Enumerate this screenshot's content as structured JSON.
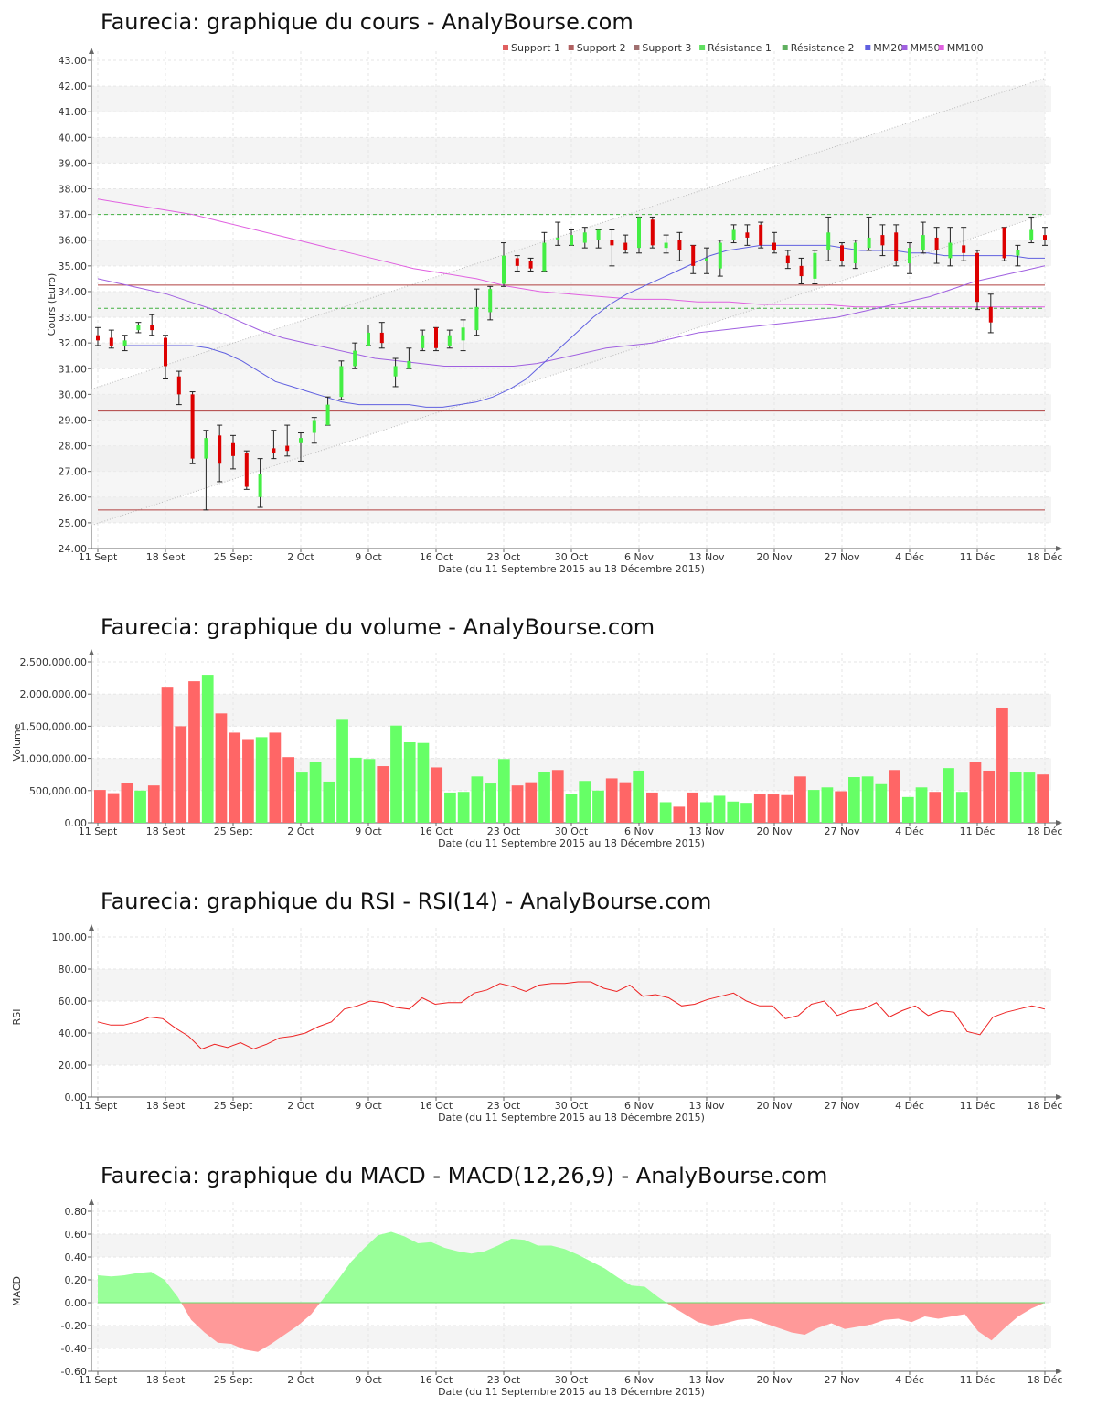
{
  "chart_data": [
    {
      "type": "candlestick",
      "title": "Faurecia: graphique du cours - AnalyBourse.com",
      "ylabel": "Cours (Euro)",
      "xlabel": "Date (du 11 Septembre 2015 au 18 Décembre 2015)",
      "ylim": [
        24,
        43
      ],
      "yticks": [
        "24.00",
        "25.00",
        "26.00",
        "27.00",
        "28.00",
        "29.00",
        "30.00",
        "31.00",
        "32.00",
        "33.00",
        "34.00",
        "35.00",
        "36.00",
        "37.00",
        "38.00",
        "39.00",
        "40.00",
        "41.00",
        "42.00",
        "43.00"
      ],
      "xticks": [
        "11 Sept",
        "18 Sept",
        "25 Sept",
        "2 Oct",
        "9 Oct",
        "16 Oct",
        "23 Oct",
        "30 Oct",
        "6 Nov",
        "13 Nov",
        "20 Nov",
        "27 Nov",
        "4 Déc",
        "11 Déc",
        "18 Déc"
      ],
      "legend": [
        {
          "label": "Support 1",
          "color": "#e06060"
        },
        {
          "label": "Support 2",
          "color": "#b06060"
        },
        {
          "label": "Support 3",
          "color": "#a07070"
        },
        {
          "label": "Résistance 1",
          "color": "#60e060"
        },
        {
          "label": "Résistance 2",
          "color": "#60b060"
        },
        {
          "label": "MM20",
          "color": "#6060e0"
        },
        {
          "label": "MM50",
          "color": "#a060e0"
        },
        {
          "label": "MM100",
          "color": "#e060e0"
        }
      ],
      "grid": true,
      "levels": {
        "support_lines": [
          34.25,
          29.35,
          25.5
        ],
        "resistance_lines": [
          37.0,
          33.35
        ]
      },
      "channel": {
        "upper": [
          30.2,
          42.3
        ],
        "lower": [
          24.9,
          37.0
        ]
      },
      "candles": [
        [
          32.3,
          32.1,
          32.6,
          31.9
        ],
        [
          32.2,
          31.9,
          32.5,
          31.8
        ],
        [
          31.9,
          32.1,
          32.3,
          31.7
        ],
        [
          32.5,
          32.7,
          32.8,
          32.4
        ],
        [
          32.7,
          32.5,
          33.1,
          32.3
        ],
        [
          32.2,
          31.1,
          32.3,
          30.6
        ],
        [
          30.7,
          30.0,
          30.9,
          29.6
        ],
        [
          30.0,
          27.5,
          30.1,
          27.3
        ],
        [
          27.5,
          28.3,
          28.6,
          25.5
        ],
        [
          28.4,
          27.3,
          28.8,
          26.6
        ],
        [
          28.1,
          27.6,
          28.4,
          27.1
        ],
        [
          27.7,
          26.4,
          27.8,
          26.3
        ],
        [
          26.0,
          26.9,
          27.5,
          25.6
        ],
        [
          27.9,
          27.7,
          28.6,
          27.5
        ],
        [
          28.0,
          27.8,
          28.8,
          27.6
        ],
        [
          28.1,
          28.3,
          28.5,
          27.4
        ],
        [
          28.5,
          29.0,
          29.1,
          28.1
        ],
        [
          28.8,
          29.6,
          29.9,
          28.8
        ],
        [
          29.9,
          31.1,
          31.3,
          29.8
        ],
        [
          31.1,
          31.7,
          32.0,
          31.0
        ],
        [
          31.9,
          32.4,
          32.7,
          31.9
        ],
        [
          32.4,
          32.0,
          32.8,
          31.8
        ],
        [
          30.7,
          31.1,
          31.4,
          30.3
        ],
        [
          31.0,
          31.3,
          31.8,
          31.0
        ],
        [
          31.8,
          32.3,
          32.5,
          31.7
        ],
        [
          32.6,
          31.8,
          32.6,
          31.7
        ],
        [
          31.9,
          32.3,
          32.5,
          31.8
        ],
        [
          32.1,
          32.6,
          32.9,
          31.7
        ],
        [
          32.5,
          33.4,
          34.1,
          32.3
        ],
        [
          33.2,
          34.1,
          34.2,
          32.9
        ],
        [
          34.3,
          35.4,
          35.9,
          34.2
        ],
        [
          35.3,
          35.0,
          35.4,
          34.8
        ],
        [
          35.2,
          34.9,
          35.3,
          34.8
        ],
        [
          34.8,
          35.9,
          36.3,
          34.8
        ],
        [
          36.1,
          36.1,
          36.7,
          35.8
        ],
        [
          35.8,
          36.2,
          36.4,
          35.8
        ],
        [
          35.9,
          36.3,
          36.5,
          35.7
        ],
        [
          36.0,
          36.4,
          36.4,
          35.7
        ],
        [
          36.0,
          35.8,
          36.4,
          35.0
        ],
        [
          35.9,
          35.6,
          36.2,
          35.5
        ],
        [
          35.7,
          36.9,
          36.9,
          35.5
        ],
        [
          36.8,
          35.8,
          36.9,
          35.7
        ],
        [
          35.7,
          35.9,
          36.2,
          35.5
        ],
        [
          36.0,
          35.6,
          36.3,
          35.2
        ],
        [
          35.8,
          35.0,
          35.8,
          34.7
        ],
        [
          35.2,
          35.3,
          35.7,
          34.7
        ],
        [
          34.9,
          35.9,
          36.0,
          34.6
        ],
        [
          36.0,
          36.4,
          36.6,
          35.9
        ],
        [
          36.3,
          36.1,
          36.6,
          35.8
        ],
        [
          36.6,
          35.8,
          36.7,
          35.7
        ],
        [
          35.9,
          35.6,
          36.3,
          35.5
        ],
        [
          35.4,
          35.1,
          35.6,
          34.9
        ],
        [
          35.0,
          34.6,
          35.3,
          34.3
        ],
        [
          34.5,
          35.5,
          35.6,
          34.3
        ],
        [
          35.6,
          36.3,
          36.9,
          35.2
        ],
        [
          35.8,
          35.2,
          35.9,
          35.0
        ],
        [
          35.1,
          35.9,
          36.0,
          34.9
        ],
        [
          35.7,
          36.1,
          36.9,
          35.6
        ],
        [
          36.2,
          35.8,
          36.6,
          35.4
        ],
        [
          36.3,
          35.2,
          36.6,
          35.0
        ],
        [
          35.1,
          35.7,
          35.9,
          34.7
        ],
        [
          35.6,
          36.2,
          36.7,
          35.5
        ],
        [
          36.1,
          35.6,
          36.5,
          35.1
        ],
        [
          35.3,
          35.9,
          36.5,
          35.0
        ],
        [
          35.8,
          35.5,
          36.5,
          35.2
        ],
        [
          35.5,
          33.6,
          35.6,
          33.3
        ],
        [
          33.4,
          32.8,
          33.9,
          32.4
        ],
        [
          36.5,
          35.3,
          36.5,
          35.2
        ],
        [
          35.4,
          35.6,
          35.8,
          35.0
        ],
        [
          36.0,
          36.4,
          36.9,
          35.9
        ],
        [
          36.2,
          36.0,
          36.5,
          35.8
        ]
      ],
      "mm20": [
        31.9,
        31.9,
        31.9,
        31.9,
        31.9,
        31.8,
        31.6,
        31.3,
        30.9,
        30.5,
        30.3,
        30.1,
        29.9,
        29.7,
        29.6,
        29.6,
        29.6,
        29.6,
        29.5,
        29.5,
        29.6,
        29.7,
        29.9,
        30.2,
        30.6,
        31.2,
        31.8,
        32.4,
        33.0,
        33.5,
        33.9,
        34.2,
        34.5,
        34.8,
        35.1,
        35.4,
        35.6,
        35.7,
        35.8,
        35.8,
        35.8,
        35.8,
        35.8,
        35.7,
        35.6,
        35.6,
        35.6,
        35.5,
        35.5,
        35.4,
        35.4,
        35.4,
        35.4,
        35.4,
        35.3,
        35.3
      ],
      "mm50": [
        34.5,
        34.3,
        34.1,
        33.9,
        33.6,
        33.3,
        32.9,
        32.5,
        32.2,
        32.0,
        31.8,
        31.6,
        31.4,
        31.3,
        31.2,
        31.1,
        31.1,
        31.1,
        31.1,
        31.2,
        31.4,
        31.6,
        31.8,
        31.9,
        32.0,
        32.2,
        32.4,
        32.5,
        32.6,
        32.7,
        32.8,
        32.9,
        33.0,
        33.2,
        33.4,
        33.6,
        33.8,
        34.1,
        34.4,
        34.6,
        34.8,
        35.0
      ],
      "mm100": [
        37.6,
        37.4,
        37.2,
        37.0,
        36.7,
        36.4,
        36.1,
        35.8,
        35.5,
        35.2,
        34.9,
        34.7,
        34.5,
        34.2,
        34.0,
        33.9,
        33.8,
        33.7,
        33.7,
        33.6,
        33.6,
        33.5,
        33.5,
        33.5,
        33.4,
        33.4,
        33.4,
        33.4,
        33.4,
        33.4,
        33.4
      ]
    },
    {
      "type": "bar",
      "title": "Faurecia: graphique du volume - AnalyBourse.com",
      "ylabel": "Volume",
      "xlabel": "Date (du 11 Septembre 2015 au 18 Décembre 2015)",
      "ylim": [
        0,
        2500000
      ],
      "yticks": [
        "0.00",
        "500,000.00",
        "1,000,000.00",
        "1,500,000.00",
        "2,000,000.00",
        "2,500,000.00"
      ],
      "xticks": [
        "11 Sept",
        "18 Sept",
        "25 Sept",
        "2 Oct",
        "9 Oct",
        "16 Oct",
        "23 Oct",
        "30 Oct",
        "6 Nov",
        "13 Nov",
        "20 Nov",
        "27 Nov",
        "4 Déc",
        "11 Déc",
        "18 Déc"
      ],
      "values": [
        510000,
        460000,
        620000,
        500000,
        580000,
        2100000,
        1500000,
        2200000,
        2300000,
        1700000,
        1400000,
        1300000,
        1330000,
        1400000,
        1020000,
        780000,
        950000,
        640000,
        1600000,
        1010000,
        990000,
        880000,
        1510000,
        1250000,
        1240000,
        860000,
        470000,
        480000,
        720000,
        610000,
        990000,
        580000,
        630000,
        790000,
        820000,
        450000,
        650000,
        500000,
        690000,
        630000,
        810000,
        470000,
        320000,
        250000,
        470000,
        320000,
        420000,
        330000,
        310000,
        450000,
        440000,
        430000,
        720000,
        510000,
        550000,
        490000,
        710000,
        720000,
        600000,
        820000,
        400000,
        550000,
        480000,
        850000,
        480000,
        950000,
        810000,
        1790000,
        790000,
        780000,
        750000
      ],
      "colors": [
        "r",
        "r",
        "r",
        "g",
        "r",
        "r",
        "r",
        "r",
        "g",
        "r",
        "r",
        "r",
        "g",
        "r",
        "r",
        "g",
        "g",
        "g",
        "g",
        "g",
        "g",
        "r",
        "g",
        "g",
        "g",
        "r",
        "g",
        "g",
        "g",
        "g",
        "g",
        "r",
        "r",
        "g",
        "r",
        "g",
        "g",
        "g",
        "r",
        "r",
        "g",
        "r",
        "g",
        "r",
        "r",
        "g",
        "g",
        "g",
        "g",
        "r",
        "r",
        "r",
        "r",
        "g",
        "g",
        "r",
        "g",
        "g",
        "g",
        "r",
        "g",
        "g",
        "r",
        "g",
        "g",
        "r",
        "r",
        "r",
        "g",
        "g",
        "r"
      ]
    },
    {
      "type": "line",
      "title": "Faurecia: graphique du RSI - RSI(14) - AnalyBourse.com",
      "ylabel": "RSI",
      "xlabel": "Date (du 11 Septembre 2015 au 18 Décembre 2015)",
      "ylim": [
        0,
        100
      ],
      "yticks": [
        "0.00",
        "20.00",
        "40.00",
        "60.00",
        "80.00",
        "100.00"
      ],
      "xticks": [
        "11 Sept",
        "18 Sept",
        "25 Sept",
        "2 Oct",
        "9 Oct",
        "16 Oct",
        "23 Oct",
        "30 Oct",
        "6 Nov",
        "13 Nov",
        "20 Nov",
        "27 Nov",
        "4 Déc",
        "11 Déc",
        "18 Déc"
      ],
      "reference_line": 50,
      "values": [
        47,
        45,
        45,
        47,
        50,
        49,
        43,
        38,
        30,
        33,
        31,
        34,
        30,
        33,
        37,
        38,
        40,
        44,
        47,
        55,
        57,
        60,
        59,
        56,
        55,
        62,
        58,
        59,
        59,
        65,
        67,
        71,
        69,
        66,
        70,
        71,
        71,
        72,
        72,
        68,
        66,
        70,
        63,
        64,
        62,
        57,
        58,
        61,
        63,
        65,
        60,
        57,
        57,
        49,
        51,
        58,
        60,
        51,
        54,
        55,
        59,
        50,
        54,
        57,
        51,
        54,
        53,
        41,
        39,
        50,
        53,
        55,
        57,
        55
      ]
    },
    {
      "type": "area",
      "title": "Faurecia: graphique du MACD - MACD(12,26,9) - AnalyBourse.com",
      "ylabel": "MACD",
      "xlabel": "Date (du 11 Septembre 2015 au 18 Décembre 2015)",
      "ylim": [
        -0.6,
        0.8
      ],
      "yticks": [
        "-0.60",
        "-0.40",
        "-0.20",
        "0.00",
        "0.20",
        "0.40",
        "0.60",
        "0.80"
      ],
      "xticks": [
        "11 Sept",
        "18 Sept",
        "25 Sept",
        "2 Oct",
        "9 Oct",
        "16 Oct",
        "23 Oct",
        "30 Oct",
        "6 Nov",
        "13 Nov",
        "20 Nov",
        "27 Nov",
        "4 Déc",
        "11 Déc",
        "18 Déc"
      ],
      "values": [
        0.24,
        0.23,
        0.24,
        0.26,
        0.27,
        0.2,
        0.05,
        -0.15,
        -0.26,
        -0.35,
        -0.36,
        -0.41,
        -0.43,
        -0.36,
        -0.28,
        -0.2,
        -0.1,
        0.05,
        0.2,
        0.36,
        0.48,
        0.59,
        0.62,
        0.58,
        0.52,
        0.53,
        0.48,
        0.45,
        0.43,
        0.45,
        0.5,
        0.56,
        0.55,
        0.5,
        0.5,
        0.47,
        0.42,
        0.36,
        0.3,
        0.22,
        0.15,
        0.14,
        0.05,
        -0.03,
        -0.1,
        -0.17,
        -0.2,
        -0.18,
        -0.15,
        -0.14,
        -0.18,
        -0.22,
        -0.26,
        -0.28,
        -0.22,
        -0.18,
        -0.23,
        -0.21,
        -0.19,
        -0.15,
        -0.14,
        -0.17,
        -0.12,
        -0.14,
        -0.12,
        -0.1,
        -0.25,
        -0.33,
        -0.22,
        -0.12,
        -0.05,
        0.0
      ]
    }
  ]
}
